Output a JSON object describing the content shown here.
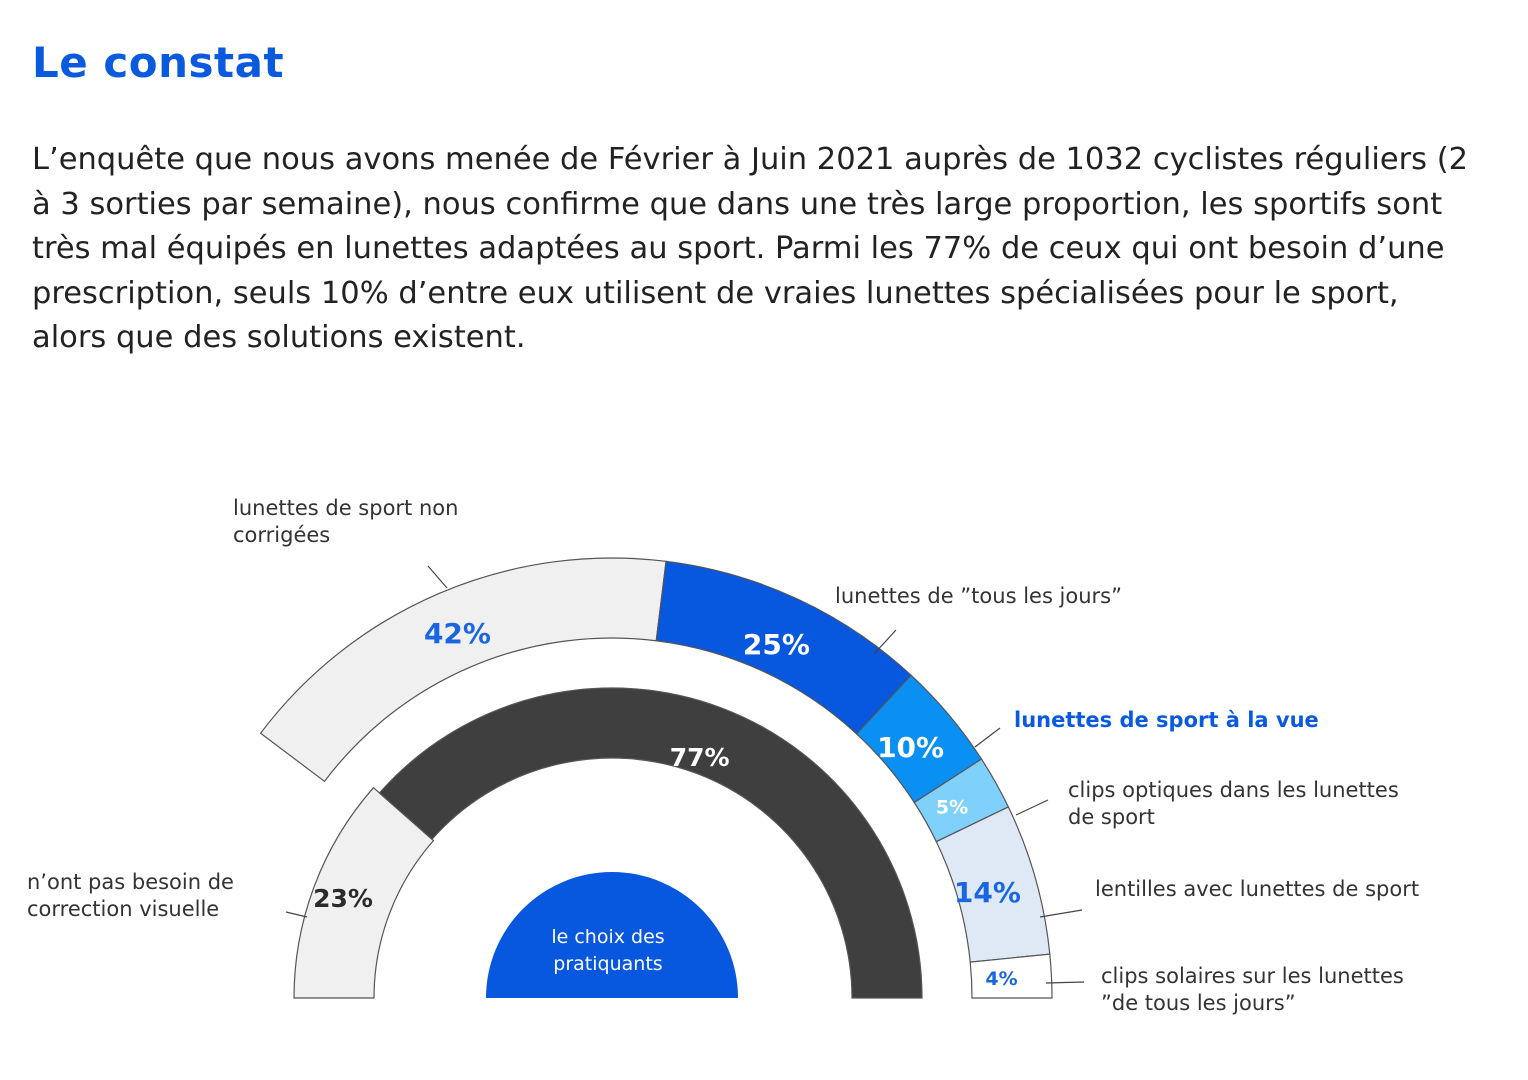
{
  "header": {
    "title": "Le constat",
    "intro": "L’enquête que nous avons menée de Février à Juin 2021 auprès de 1032 cyclistes réguliers (2 à 3 sorties par semaine), nous confirme que dans une très large proportion, les sportifs sont très mal équipés en lunettes adaptées au sport. Parmi les 77% de ceux qui ont besoin d’une prescription, seuls 10% d’entre eux utilisent de vraies lunettes spécialisées pour le sport, alors que des solutions existent."
  },
  "chart_data": {
    "type": "pie",
    "center_label": [
      "le choix des",
      "pratiquants"
    ],
    "inner_ring": [
      {
        "label": "n’ont pas besoin de correction visuelle",
        "label_lines": [
          "n’ont pas besoin de",
          "correction visuelle"
        ],
        "value": 23,
        "value_text": "23%",
        "color": "#f0f0f0"
      },
      {
        "label": "",
        "label_lines": [],
        "value": 77,
        "value_text": "77%",
        "color": "#3f3f3f"
      }
    ],
    "outer_ring": [
      {
        "label": "lunettes de sport non corrigées",
        "label_lines": [
          "lunettes de sport non",
          "corrigées"
        ],
        "value": 42,
        "value_text": "42%",
        "color": "#f0f0f0"
      },
      {
        "label": "lunettes de ”tous les jours”",
        "label_lines": [
          "lunettes de ”tous les jours”"
        ],
        "value": 25,
        "value_text": "25%",
        "color": "#0757df"
      },
      {
        "label": "lunettes de sport à la vue",
        "label_lines": [
          "lunettes de sport à la vue"
        ],
        "value": 10,
        "value_text": "10%",
        "color": "#0a8ff2",
        "highlight": true
      },
      {
        "label": "clips optiques dans les lunettes de sport",
        "label_lines": [
          "clips optiques dans les lunettes",
          "de sport"
        ],
        "value": 5,
        "value_text": "5%",
        "color": "#7fd0fb"
      },
      {
        "label": "lentilles avec lunettes de sport",
        "label_lines": [
          "lentilles avec lunettes de sport"
        ],
        "value": 14,
        "value_text": "14%",
        "color": "#dfe9f6"
      },
      {
        "label": "clips solaires sur les lunettes ”de tous les jours”",
        "label_lines": [
          "clips solaires sur les lunettes",
          "”de tous les jours”"
        ],
        "value": 4,
        "value_text": "4%",
        "color": "#ffffff"
      }
    ],
    "colors": {
      "accent_blue": "#0a5adf",
      "value_blue": "#1a66e0",
      "dark_text": "#2b2b2b",
      "white_text": "#ffffff",
      "center_fill": "#0757df"
    }
  }
}
